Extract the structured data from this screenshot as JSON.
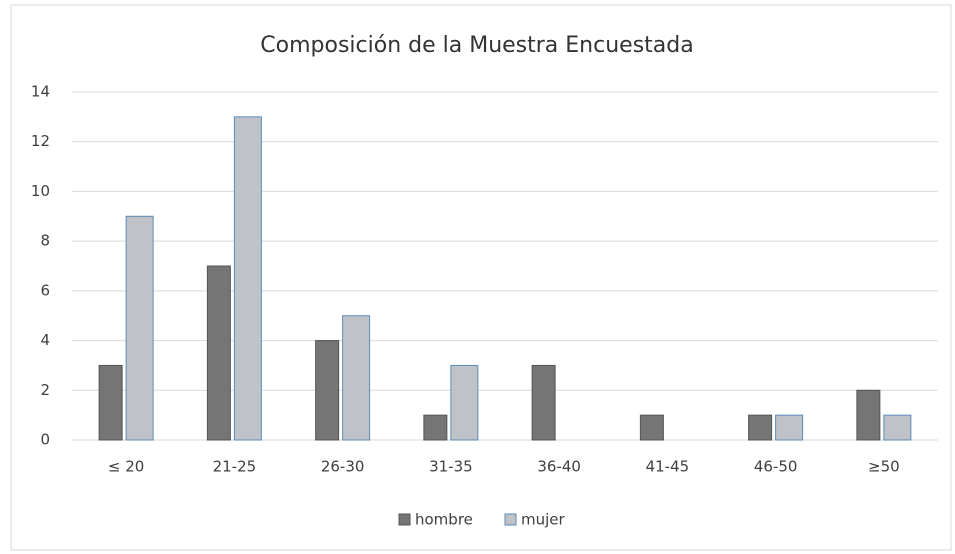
{
  "chart_data": {
    "type": "bar",
    "title": "Composición de la Muestra Encuestada",
    "categories": [
      "≤ 20",
      "21-25",
      "26-30",
      "31-35",
      "36-40",
      "41-45",
      "46-50",
      "≥50"
    ],
    "series": [
      {
        "name": "hombre",
        "color": "#757575",
        "values": [
          3,
          7,
          4,
          1,
          3,
          1,
          1,
          2
        ]
      },
      {
        "name": "mujer",
        "color": "#bfc3c7",
        "values": [
          9,
          13,
          5,
          3,
          0,
          0,
          1,
          1
        ]
      }
    ],
    "ylim": [
      0,
      14
    ],
    "yticks": [
      0,
      2,
      4,
      6,
      8,
      10,
      12,
      14
    ],
    "grid": true,
    "legend": "bottom"
  }
}
